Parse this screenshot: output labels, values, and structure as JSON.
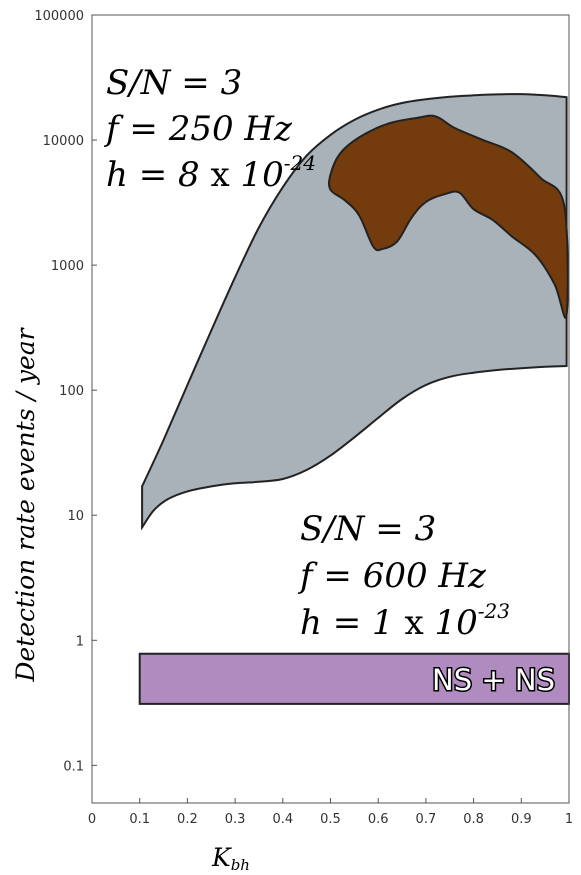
{
  "chart_data": {
    "type": "area",
    "title": "",
    "xlabel": "K",
    "xlabel_sub": "bh",
    "ylabel": "Detection rate  events / year",
    "xlim": [
      0,
      1
    ],
    "ylim": [
      0.05,
      100000
    ],
    "yscale": "log",
    "grid": false,
    "x_ticks": [
      0,
      0.1,
      0.2,
      0.3,
      0.4,
      0.5,
      0.6,
      0.7,
      0.8,
      0.9,
      1
    ],
    "x_tick_labels": [
      "0",
      "0.1",
      "0.2",
      "0.3",
      "0.4",
      "0.5",
      "0.6",
      "0.7",
      "0.8",
      "0.9",
      "1"
    ],
    "y_ticks": [
      0.1,
      1,
      10,
      100,
      1000,
      10000,
      100000
    ],
    "y_tick_labels": [
      "0.1",
      "1",
      "10",
      "100",
      "1000",
      "10000",
      "100000"
    ],
    "regions": [
      {
        "id": "region-250hz",
        "color": "#aab2b9",
        "outline": "#222222",
        "upper": [
          [
            0.105,
            17
          ],
          [
            0.15,
            40
          ],
          [
            0.2,
            110
          ],
          [
            0.25,
            300
          ],
          [
            0.3,
            800
          ],
          [
            0.35,
            2000
          ],
          [
            0.4,
            4200
          ],
          [
            0.45,
            7500
          ],
          [
            0.5,
            11000
          ],
          [
            0.55,
            14500
          ],
          [
            0.6,
            17500
          ],
          [
            0.65,
            19800
          ],
          [
            0.7,
            21200
          ],
          [
            0.75,
            22200
          ],
          [
            0.8,
            22800
          ],
          [
            0.85,
            23200
          ],
          [
            0.9,
            23300
          ],
          [
            0.95,
            22800
          ],
          [
            0.995,
            22000
          ]
        ],
        "lower": [
          [
            0.105,
            8
          ],
          [
            0.13,
            11
          ],
          [
            0.16,
            13.5
          ],
          [
            0.2,
            15.5
          ],
          [
            0.25,
            17
          ],
          [
            0.3,
            18
          ],
          [
            0.35,
            18.5
          ],
          [
            0.4,
            19.5
          ],
          [
            0.45,
            23
          ],
          [
            0.5,
            30
          ],
          [
            0.55,
            42
          ],
          [
            0.6,
            60
          ],
          [
            0.65,
            85
          ],
          [
            0.7,
            110
          ],
          [
            0.75,
            128
          ],
          [
            0.8,
            138
          ],
          [
            0.85,
            145
          ],
          [
            0.9,
            150
          ],
          [
            0.95,
            154
          ],
          [
            0.995,
            156
          ]
        ]
      },
      {
        "id": "region-600hz",
        "color": "#743b0c",
        "outline": "#222222",
        "outline_points": [
          [
            0.5,
            5300
          ],
          [
            0.52,
            7800
          ],
          [
            0.56,
            10500
          ],
          [
            0.62,
            13500
          ],
          [
            0.68,
            15000
          ],
          [
            0.72,
            15500
          ],
          [
            0.76,
            12500
          ],
          [
            0.82,
            10000
          ],
          [
            0.88,
            8000
          ],
          [
            0.94,
            5000
          ],
          [
            0.99,
            3000
          ],
          [
            0.995,
            400
          ],
          [
            0.97,
            700
          ],
          [
            0.93,
            1200
          ],
          [
            0.88,
            1700
          ],
          [
            0.84,
            2300
          ],
          [
            0.8,
            2800
          ],
          [
            0.77,
            3800
          ],
          [
            0.74,
            3700
          ],
          [
            0.7,
            3200
          ],
          [
            0.67,
            2400
          ],
          [
            0.64,
            1550
          ],
          [
            0.61,
            1350
          ],
          [
            0.59,
            1400
          ],
          [
            0.56,
            2500
          ],
          [
            0.53,
            3300
          ],
          [
            0.5,
            4000
          ]
        ]
      },
      {
        "id": "region-ns-ns",
        "label": "NS + NS",
        "color": "#b08bbf",
        "outline": "#222222",
        "x_range": [
          0.1,
          1.0
        ],
        "y_range": [
          0.31,
          0.78
        ]
      }
    ],
    "annotations": [
      {
        "id": "params-250",
        "lines": [
          {
            "lhs": "S/N",
            "rhs": "3"
          },
          {
            "lhs": "f",
            "rhs": "250 Hz"
          },
          {
            "lhs": "h",
            "rhs_mant": "8",
            "rhs_x": "x",
            "rhs_base": "10",
            "rhs_exp": "-24"
          }
        ]
      },
      {
        "id": "params-600",
        "lines": [
          {
            "lhs": "S/N",
            "rhs": "3"
          },
          {
            "lhs": "f",
            "rhs": "600 Hz"
          },
          {
            "lhs": "h",
            "rhs_mant": "1",
            "rhs_x": "x",
            "rhs_base": "10",
            "rhs_exp": "-23"
          }
        ]
      }
    ]
  }
}
